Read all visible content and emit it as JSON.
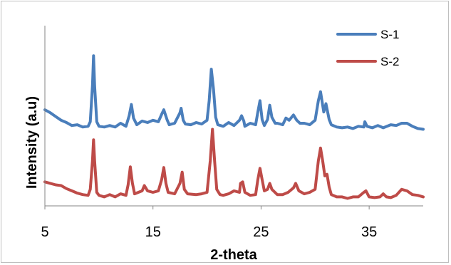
{
  "chart_data": {
    "type": "line",
    "xlabel": "2-theta",
    "ylabel": "Intensity (a.u)",
    "xlim": [
      5,
      40
    ],
    "ylim": [
      0,
      240
    ],
    "xticks": [
      5,
      15,
      25,
      35
    ],
    "grid": false,
    "legend_position": "top-right",
    "series": [
      {
        "name": "S-1",
        "color": "#4a7ebb",
        "points": [
          [
            5,
            128
          ],
          [
            5.5,
            124
          ],
          [
            6,
            119
          ],
          [
            6.5,
            114
          ],
          [
            7,
            111
          ],
          [
            7.5,
            107
          ],
          [
            8,
            108
          ],
          [
            8.5,
            105
          ],
          [
            9,
            106
          ],
          [
            9.2,
            112
          ],
          [
            9.4,
            160
          ],
          [
            9.5,
            200
          ],
          [
            9.6,
            160
          ],
          [
            9.8,
            112
          ],
          [
            10,
            106
          ],
          [
            10.5,
            105
          ],
          [
            11,
            107
          ],
          [
            11.5,
            105
          ],
          [
            12,
            110
          ],
          [
            12.5,
            106
          ],
          [
            12.8,
            120
          ],
          [
            13,
            135
          ],
          [
            13.2,
            117
          ],
          [
            13.5,
            108
          ],
          [
            14,
            113
          ],
          [
            14.5,
            111
          ],
          [
            15,
            114
          ],
          [
            15.5,
            112
          ],
          [
            15.8,
            122
          ],
          [
            16,
            128
          ],
          [
            16.3,
            115
          ],
          [
            16.5,
            108
          ],
          [
            17,
            110
          ],
          [
            17.5,
            124
          ],
          [
            17.6,
            130
          ],
          [
            17.8,
            114
          ],
          [
            18,
            109
          ],
          [
            18.5,
            108
          ],
          [
            19,
            111
          ],
          [
            19.5,
            109
          ],
          [
            20,
            114
          ],
          [
            20.2,
            140
          ],
          [
            20.4,
            182
          ],
          [
            20.6,
            155
          ],
          [
            20.8,
            118
          ],
          [
            21,
            108
          ],
          [
            21.5,
            106
          ],
          [
            22,
            111
          ],
          [
            22.5,
            107
          ],
          [
            23,
            114
          ],
          [
            23.2,
            120
          ],
          [
            23.4,
            113
          ],
          [
            23.5,
            106
          ],
          [
            24,
            110
          ],
          [
            24.5,
            108
          ],
          [
            24.7,
            125
          ],
          [
            24.9,
            140
          ],
          [
            25.1,
            115
          ],
          [
            25.3,
            107
          ],
          [
            25.6,
            115
          ],
          [
            25.8,
            134
          ],
          [
            26,
            118
          ],
          [
            26.3,
            110
          ],
          [
            26.5,
            110
          ],
          [
            27,
            108
          ],
          [
            27.3,
            117
          ],
          [
            27.6,
            114
          ],
          [
            28,
            121
          ],
          [
            28.3,
            114
          ],
          [
            28.6,
            110
          ],
          [
            29,
            110
          ],
          [
            29.5,
            108
          ],
          [
            30,
            114
          ],
          [
            30.3,
            140
          ],
          [
            30.5,
            152
          ],
          [
            30.8,
            125
          ],
          [
            31,
            136
          ],
          [
            31.3,
            115
          ],
          [
            31.5,
            108
          ],
          [
            32,
            105
          ],
          [
            32.5,
            104
          ],
          [
            33,
            105
          ],
          [
            33.5,
            103
          ],
          [
            34,
            106
          ],
          [
            34.5,
            105
          ],
          [
            34.6,
            112
          ],
          [
            34.8,
            106
          ],
          [
            35.3,
            104
          ],
          [
            35.8,
            107
          ],
          [
            36.3,
            104
          ],
          [
            37,
            108
          ],
          [
            37.5,
            107
          ],
          [
            38,
            110
          ],
          [
            38.5,
            110
          ],
          [
            39,
            106
          ],
          [
            39.5,
            103
          ],
          [
            40,
            102
          ]
        ]
      },
      {
        "name": "S-2",
        "color": "#be4b48",
        "points": [
          [
            5,
            32
          ],
          [
            5.5,
            30
          ],
          [
            6,
            28
          ],
          [
            6.5,
            27
          ],
          [
            7,
            23
          ],
          [
            7.5,
            20
          ],
          [
            8,
            17
          ],
          [
            8.5,
            15
          ],
          [
            9,
            14
          ],
          [
            9.2,
            22
          ],
          [
            9.4,
            60
          ],
          [
            9.5,
            88
          ],
          [
            9.6,
            60
          ],
          [
            9.8,
            18
          ],
          [
            10,
            14
          ],
          [
            10.5,
            12
          ],
          [
            11,
            15
          ],
          [
            11.5,
            12
          ],
          [
            12,
            16
          ],
          [
            12.5,
            14
          ],
          [
            12.7,
            28
          ],
          [
            12.9,
            52
          ],
          [
            13.1,
            30
          ],
          [
            13.3,
            16
          ],
          [
            14,
            20
          ],
          [
            14.2,
            27
          ],
          [
            14.5,
            20
          ],
          [
            15,
            18
          ],
          [
            15.5,
            20
          ],
          [
            15.8,
            35
          ],
          [
            16,
            51
          ],
          [
            16.2,
            30
          ],
          [
            16.4,
            18
          ],
          [
            17,
            16
          ],
          [
            17.5,
            30
          ],
          [
            17.7,
            45
          ],
          [
            17.9,
            22
          ],
          [
            18.2,
            16
          ],
          [
            19,
            15
          ],
          [
            19.5,
            16
          ],
          [
            20,
            18
          ],
          [
            20.3,
            60
          ],
          [
            20.5,
            102
          ],
          [
            20.7,
            60
          ],
          [
            20.9,
            22
          ],
          [
            21.2,
            15
          ],
          [
            21.5,
            14
          ],
          [
            22,
            16
          ],
          [
            22.5,
            20
          ],
          [
            23,
            18
          ],
          [
            23.1,
            30
          ],
          [
            23.3,
            32
          ],
          [
            23.5,
            18
          ],
          [
            24,
            14
          ],
          [
            24.5,
            15
          ],
          [
            24.7,
            35
          ],
          [
            24.9,
            50
          ],
          [
            25.1,
            35
          ],
          [
            25.3,
            20
          ],
          [
            25.6,
            22
          ],
          [
            25.8,
            30
          ],
          [
            26,
            22
          ],
          [
            26.5,
            15
          ],
          [
            27,
            15
          ],
          [
            27.5,
            18
          ],
          [
            28,
            24
          ],
          [
            28.2,
            30
          ],
          [
            28.5,
            20
          ],
          [
            29,
            16
          ],
          [
            29.5,
            18
          ],
          [
            30,
            22
          ],
          [
            30.3,
            60
          ],
          [
            30.5,
            77
          ],
          [
            30.7,
            60
          ],
          [
            30.9,
            40
          ],
          [
            31.1,
            42
          ],
          [
            31.3,
            25
          ],
          [
            31.5,
            15
          ],
          [
            32,
            12
          ],
          [
            32.5,
            12
          ],
          [
            33,
            10
          ],
          [
            33.5,
            12
          ],
          [
            34,
            12
          ],
          [
            34.5,
            18
          ],
          [
            34.7,
            20
          ],
          [
            35,
            12
          ],
          [
            35.5,
            11
          ],
          [
            36,
            12
          ],
          [
            36.3,
            16
          ],
          [
            36.6,
            12
          ],
          [
            37,
            11
          ],
          [
            37.5,
            14
          ],
          [
            38,
            22
          ],
          [
            38.5,
            20
          ],
          [
            39,
            15
          ],
          [
            39.5,
            14
          ],
          [
            40,
            12
          ]
        ]
      }
    ]
  }
}
